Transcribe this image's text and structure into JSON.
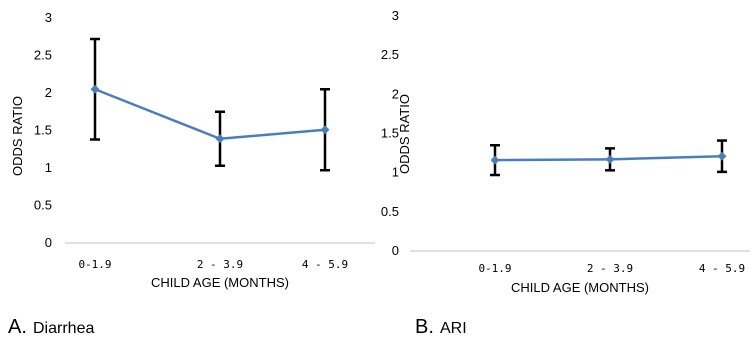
{
  "chart_data": [
    {
      "type": "line",
      "caption_letter": "A.",
      "caption_name": "Diarrhea",
      "xlabel": "CHILD AGE (MONTHS)",
      "ylabel": "ODDS RATIO",
      "categories": [
        "0-1.9",
        "2 - 3.9",
        "4 - 5.9"
      ],
      "yticks": [
        "0",
        "0.5",
        "1",
        "1.5",
        "2",
        "2.5",
        "3"
      ],
      "ylim": [
        0,
        3
      ],
      "grid": false,
      "series": [
        {
          "values": [
            2.05,
            1.39,
            1.51
          ],
          "error_low": [
            1.38,
            1.03,
            0.97
          ],
          "error_high": [
            2.72,
            1.75,
            2.05
          ]
        }
      ],
      "color": "#4a7ebb"
    },
    {
      "type": "line",
      "caption_letter": "B.",
      "caption_name": "ARI",
      "xlabel": "CHILD AGE (MONTHS)",
      "ylabel": "ODDS RATIO",
      "categories": [
        "0-1.9",
        "2 - 3.9",
        "4 - 5.9"
      ],
      "yticks": [
        "0",
        "0.5",
        "1",
        "1.5",
        "2",
        "2.5",
        "3"
      ],
      "ylim": [
        0,
        3
      ],
      "grid": false,
      "series": [
        {
          "values": [
            1.16,
            1.17,
            1.21
          ],
          "error_low": [
            0.97,
            1.03,
            1.01
          ],
          "error_high": [
            1.35,
            1.31,
            1.41
          ]
        }
      ],
      "color": "#4a7ebb"
    }
  ]
}
